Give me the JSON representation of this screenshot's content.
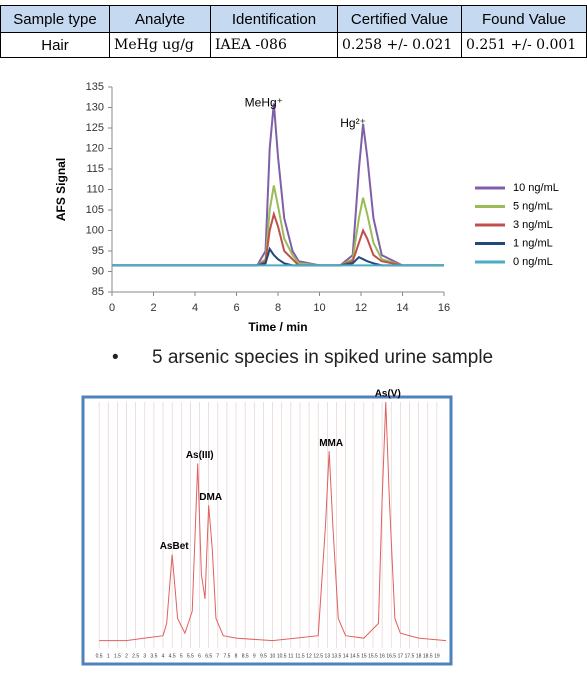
{
  "table": {
    "header": [
      "Sample type",
      "Analyte",
      "Identification",
      "Certified Value",
      "Found Value"
    ],
    "rows": [
      [
        "Hair",
        "MeHg ug/g",
        "IAEA -086",
        "0.258 +/- 0.021",
        "0.251 +/- 0.001"
      ]
    ]
  },
  "bullet": "5 arsenic species in spiked urine sample",
  "chart_data": [
    {
      "type": "line",
      "x_label": "Time / min",
      "y_label": "AFS Signal",
      "annotations": [
        "MeHg⁺",
        "Hg²⁺"
      ],
      "x": [
        0,
        1,
        2,
        3,
        4,
        5,
        6,
        7,
        7.4,
        7.6,
        7.8,
        8.0,
        8.3,
        8.7,
        9,
        10,
        11,
        11.6,
        11.9,
        12.1,
        12.3,
        12.6,
        13,
        14,
        15,
        16
      ],
      "series": [
        {
          "name": "10 ng/mL",
          "color": "#7f5fa8",
          "values": [
            91.5,
            91.5,
            91.5,
            91.5,
            91.5,
            91.5,
            91.5,
            91.5,
            95,
            120,
            131,
            118,
            103,
            95,
            92.5,
            91.5,
            91.5,
            94,
            115,
            126,
            118,
            103,
            94,
            91.5,
            91.5,
            91.5
          ]
        },
        {
          "name": "5 ng/mL",
          "color": "#9bbb59",
          "values": [
            91.5,
            91.5,
            91.5,
            91.5,
            91.5,
            91.5,
            91.5,
            91.5,
            93,
            105,
            111,
            106,
            98,
            94,
            92,
            91.5,
            91.5,
            93,
            103,
            108,
            104,
            97,
            93,
            91.5,
            91.5,
            91.5
          ]
        },
        {
          "name": "3 ng/mL",
          "color": "#c0504d",
          "values": [
            91.5,
            91.5,
            91.5,
            91.5,
            91.5,
            91.5,
            91.5,
            91.5,
            92.5,
            100,
            104,
            101,
            95,
            93,
            91.5,
            91.5,
            91.5,
            92.5,
            97,
            100,
            98,
            94,
            92.5,
            91.5,
            91.5,
            91.5
          ]
        },
        {
          "name": "1 ng/mL",
          "color": "#1f497d",
          "values": [
            91.5,
            91.5,
            91.5,
            91.5,
            91.5,
            91.5,
            91.5,
            91.5,
            92,
            95.5,
            94,
            93,
            92,
            91.5,
            91.5,
            91.5,
            91.5,
            92,
            93.5,
            93,
            92.5,
            92,
            91.5,
            91.5,
            91.5,
            91.5
          ]
        },
        {
          "name": "0 ng/mL",
          "color": "#4bacc6",
          "values": [
            91.5,
            91.5,
            91.5,
            91.5,
            91.5,
            91.5,
            91.5,
            91.5,
            91.5,
            91.5,
            91.5,
            91.5,
            91.5,
            91.5,
            91.5,
            91.5,
            91.5,
            91.5,
            91.5,
            91.5,
            91.5,
            91.5,
            91.5,
            91.5,
            91.5,
            91.5
          ]
        }
      ],
      "xlim": [
        0,
        16
      ],
      "xticks": [
        0,
        2,
        4,
        6,
        8,
        10,
        12,
        14,
        16
      ],
      "ylim": [
        85,
        135
      ],
      "yticks": [
        85,
        90,
        95,
        100,
        105,
        110,
        115,
        120,
        125,
        130,
        135
      ],
      "legend": "right",
      "grid": false
    },
    {
      "type": "line",
      "annotations": [
        "AsBet",
        "As(III)",
        "DMA",
        "MMA",
        "As(V)"
      ],
      "x": [
        0.5,
        2,
        3,
        4,
        4.2,
        4.5,
        4.8,
        5.2,
        5.6,
        5.9,
        6.1,
        6.3,
        6.5,
        6.7,
        6.9,
        7.3,
        8,
        10,
        12.5,
        12.9,
        13.1,
        13.3,
        13.6,
        14,
        15,
        15.8,
        16.0,
        16.2,
        16.4,
        16.7,
        17,
        18,
        19.5
      ],
      "values": [
        3,
        3,
        4,
        5,
        10,
        38,
        12,
        6,
        15,
        75,
        30,
        20,
        58,
        40,
        12,
        5,
        4,
        3,
        5,
        50,
        80,
        50,
        12,
        5,
        4,
        10,
        60,
        100,
        60,
        12,
        6,
        4,
        3
      ],
      "color": "#e06060",
      "xlim": [
        0,
        19.5
      ],
      "xticks": [
        0.5,
        1,
        1.5,
        2,
        2.5,
        3,
        3.5,
        4,
        4.5,
        5,
        5.5,
        6,
        6.5,
        7,
        7.5,
        8,
        8.5,
        9,
        9.5,
        10,
        10.5,
        11,
        11.5,
        12,
        12.5,
        13,
        13.5,
        14,
        14.5,
        15,
        15.5,
        16,
        16.5,
        17,
        17.5,
        18,
        18.5,
        19
      ],
      "ylim": [
        0,
        100
      ],
      "grid": true
    }
  ]
}
